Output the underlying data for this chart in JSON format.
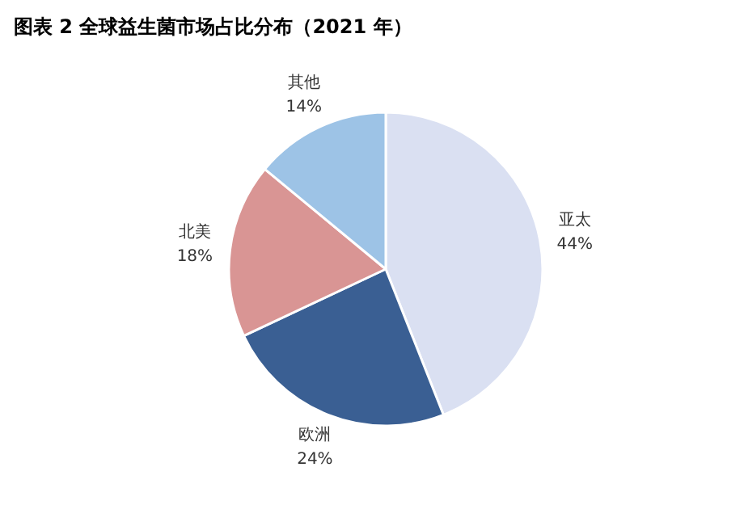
{
  "chart_data": {
    "type": "pie",
    "title": "图表 2  全球益生菌市场占比分布（2021 年）",
    "categories": [
      "亚太",
      "欧洲",
      "北美",
      "其他"
    ],
    "values": [
      44,
      24,
      18,
      14
    ],
    "colors": [
      "#dae0f2",
      "#3a5f93",
      "#d99594",
      "#9dc3e6"
    ],
    "value_labels": [
      "44%",
      "24%",
      "18%",
      "14%"
    ]
  }
}
